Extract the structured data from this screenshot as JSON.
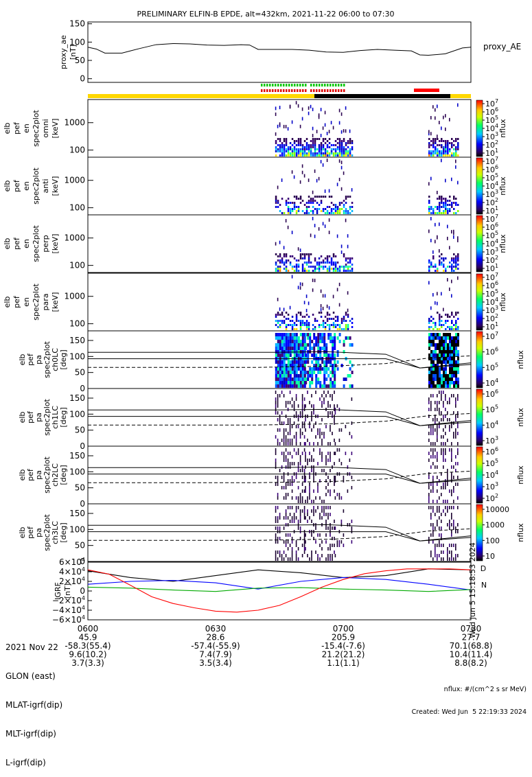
{
  "title": "PRELIMINARY ELFIN-B EPDE, alt=432km, 2021-11-22 06:00 to 07:30",
  "chart_data": [
    {
      "type": "line",
      "name": "proxy_ae_panel",
      "ylabel": [
        "proxy_ae",
        "[nT]"
      ],
      "yticks": [
        "150",
        "100",
        "50",
        "0"
      ],
      "ylim": [
        -10,
        155
      ],
      "series": [
        {
          "name": "proxy_AE",
          "x": [
            0,
            2,
            4,
            6,
            8,
            10,
            12,
            16,
            20,
            24,
            28,
            32,
            36,
            38,
            40,
            44,
            48,
            52,
            56,
            60,
            64,
            68,
            72,
            76,
            78,
            80,
            84,
            88,
            90
          ],
          "values": [
            86,
            81,
            70,
            70,
            70,
            76,
            82,
            93,
            96,
            95,
            92,
            91,
            93,
            92,
            80,
            80,
            80,
            78,
            73,
            72,
            77,
            80,
            78,
            76,
            65,
            64,
            68,
            84,
            86
          ]
        }
      ]
    },
    {
      "type": "heatmap",
      "name": "energy_spectrograms",
      "panels": [
        {
          "label": [
            "elb",
            "pef",
            "en",
            "spec2plot",
            "omni",
            "[keV]"
          ]
        },
        {
          "label": [
            "elb",
            "pef",
            "en",
            "spec2plot",
            "anti",
            "[keV]"
          ]
        },
        {
          "label": [
            "elb",
            "pef",
            "en",
            "spec2plot",
            "perp",
            "[keV]"
          ]
        },
        {
          "label": [
            "elb",
            "pef",
            "en",
            "spec2plot",
            "para",
            "[keV]"
          ]
        }
      ],
      "yticks": [
        "1000",
        "100"
      ],
      "yscale": "log",
      "ylim": [
        55,
        7000
      ],
      "colorbar_ticks": [
        "10^7",
        "10^6",
        "10^5",
        "10^4",
        "10^3",
        "10^2",
        "10^1"
      ],
      "colorbar_label": "nflux",
      "intervals_minutes": [
        [
          44,
          62
        ],
        [
          80,
          87
        ]
      ]
    },
    {
      "type": "heatmap",
      "name": "pitch_angle_spectrograms",
      "panels": [
        {
          "label": [
            "elb",
            "pef",
            "pa",
            "spec2plot",
            "ch0LC",
            "[deg]"
          ],
          "cb": [
            "10^7",
            "10^6",
            "10^5",
            "10^4"
          ]
        },
        {
          "label": [
            "elb",
            "pef",
            "pa",
            "spec2plot",
            "ch1LC",
            "[deg]"
          ],
          "cb": [
            "10^6",
            "10^5",
            "10^4",
            "10^3"
          ]
        },
        {
          "label": [
            "elb",
            "pef",
            "pa",
            "spec2plot",
            "ch2LC",
            "[deg]"
          ],
          "cb": [
            "10^6",
            "10^5",
            "10^4",
            "10^3",
            "10^2"
          ]
        },
        {
          "label": [
            "elb",
            "pef",
            "pa",
            "spec2plot",
            "ch3LC",
            "[deg]"
          ],
          "cb": [
            "10000",
            "1000",
            "100",
            "10"
          ]
        }
      ],
      "yticks": [
        "150",
        "100",
        "50",
        "0"
      ],
      "ylim": [
        0,
        180
      ],
      "colorbar_label": "nflux"
    },
    {
      "type": "line",
      "name": "igrf_panel",
      "ylabel": [
        "IGRF",
        "[nT]"
      ],
      "yticks": [
        "6×10^4",
        "4×10^4",
        "2×10^4",
        "0",
        "−2×10^4",
        "−4×10^4",
        "−6×10^4"
      ],
      "ylim": [
        -60000,
        60000
      ],
      "series": [
        {
          "color": "#000000",
          "x": [
            0,
            10,
            20,
            30,
            40,
            50,
            60,
            70,
            80,
            90
          ],
          "values": [
            42000,
            28000,
            20000,
            32000,
            44000,
            38000,
            28000,
            32000,
            46000,
            44000
          ]
        },
        {
          "color": "#0000ff",
          "x": [
            0,
            10,
            20,
            30,
            40,
            50,
            60,
            70,
            80,
            90
          ],
          "values": [
            14000,
            20000,
            22000,
            17000,
            4000,
            20000,
            28000,
            24000,
            14000,
            2000
          ]
        },
        {
          "color": "#00aa00",
          "x": [
            0,
            10,
            20,
            30,
            40,
            50,
            60,
            70,
            80,
            90
          ],
          "values": [
            8000,
            6000,
            2000,
            -1000,
            6000,
            7000,
            4000,
            2000,
            -1000,
            3000
          ]
        },
        {
          "color": "#ff0000",
          "x": [
            0,
            5,
            10,
            15,
            20,
            25,
            30,
            35,
            40,
            45,
            50,
            55,
            60,
            65,
            70,
            75,
            80,
            85,
            90
          ],
          "values": [
            44000,
            35000,
            12000,
            -12000,
            -26000,
            -35000,
            -42000,
            -44000,
            -40000,
            -30000,
            -12000,
            8000,
            24000,
            36000,
            42000,
            46000,
            46000,
            46000,
            44000
          ]
        }
      ],
      "side_marks": [
        "D",
        "N"
      ],
      "stamp": "Wed Jun 5 15:18:53 2024"
    }
  ],
  "footer": {
    "rows": [
      {
        "label": "2021 Nov 22",
        "values": [
          "0600",
          "0630",
          "0700",
          "0730"
        ]
      },
      {
        "label": "GLON (east)",
        "values": [
          "45.9",
          "28.6",
          "205.9",
          "27.7"
        ]
      },
      {
        "label": "MLAT-igrf(dip)",
        "values": [
          "-58.3(55.4)",
          "-57.4(-55.9)",
          "-15.4(-7.6)",
          "70.1(68.8)"
        ]
      },
      {
        "label": "MLT-igrf(dip)",
        "values": [
          "9.6(10.2)",
          "7.4(7.9)",
          "21.2(21.2)",
          "10.4(11.4)"
        ]
      },
      {
        "label": "L-igrf(dip)",
        "values": [
          "3.7(3.3)",
          "3.5(3.4)",
          "1.1(1.1)",
          "8.8(8.2)"
        ]
      }
    ],
    "units": "nflux: #/(cm^2 s sr MeV)",
    "created": "Created: Wed Jun  5 22:19:33 2024"
  },
  "colors": {
    "yellow_bar": "#ffd700",
    "black_bar": "#000000",
    "red_bar": "#ff0000",
    "green_ticks": "#00c800",
    "red_ticks": "#e00000"
  }
}
